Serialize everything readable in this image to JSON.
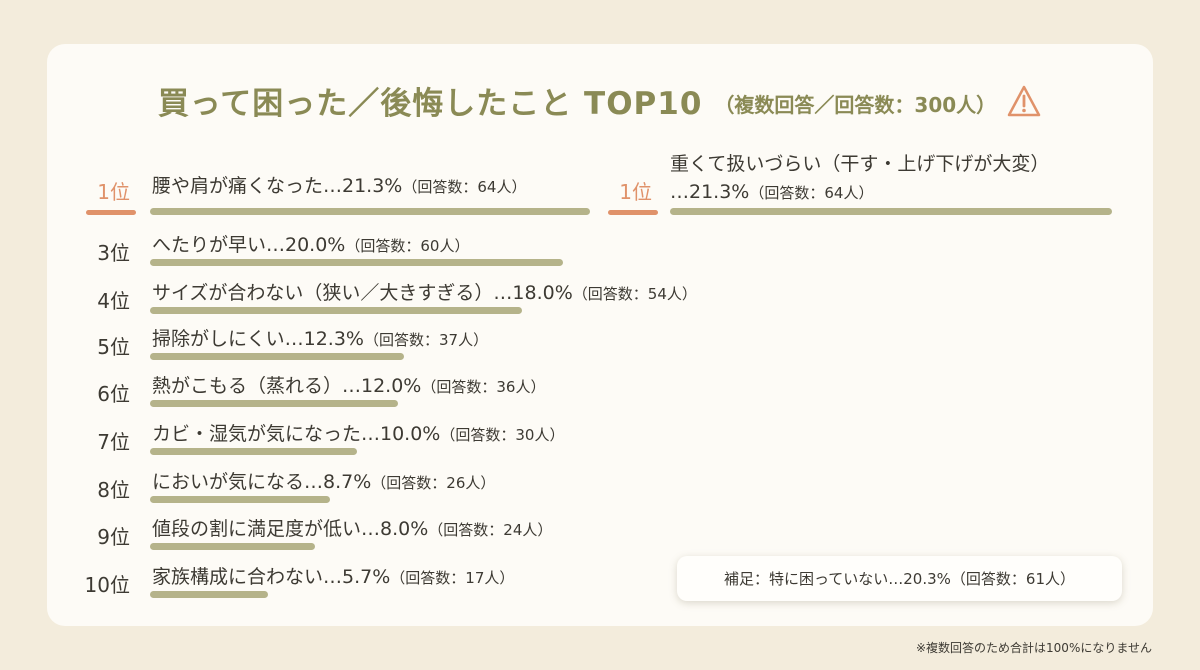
{
  "title": "買って困った／後悔したこと TOP10",
  "subtitle": "（複数回答／回答数：300人）",
  "icons": {
    "warning": "warning-triangle-icon"
  },
  "colors": {
    "accent": "#e0926a",
    "bar": "#b5b38a",
    "title": "#8a8a55"
  },
  "chart_data": {
    "type": "bar",
    "orientation": "horizontal",
    "items": [
      {
        "rank": "1位",
        "label": "腰や肩が痛くなった…21.3%",
        "count": "（回答数：64人）",
        "value": 21.3
      },
      {
        "rank": "1位",
        "label": "重くて扱いづらい（干す・上げ下げが大変）",
        "label2": "…21.3%",
        "count": "（回答数：64人）",
        "value": 21.3
      },
      {
        "rank": "3位",
        "label": "へたりが早い…20.0%",
        "count": "（回答数：60人）",
        "value": 20.0
      },
      {
        "rank": "4位",
        "label": "サイズが合わない（狭い／大きすぎる）…18.0%",
        "count": "（回答数：54人）",
        "value": 18.0
      },
      {
        "rank": "5位",
        "label": "掃除がしにくい…12.3%",
        "count": "（回答数：37人）",
        "value": 12.3
      },
      {
        "rank": "6位",
        "label": "熱がこもる（蒸れる）…12.0%",
        "count": "（回答数：36人）",
        "value": 12.0
      },
      {
        "rank": "7位",
        "label": "カビ・湿気が気になった…10.0%",
        "count": "（回答数：30人）",
        "value": 10.0
      },
      {
        "rank": "8位",
        "label": "においが気になる…8.7%",
        "count": "（回答数：26人）",
        "value": 8.7
      },
      {
        "rank": "9位",
        "label": "値段の割に満足度が低い…8.0%",
        "count": "（回答数：24人）",
        "value": 8.0
      },
      {
        "rank": "10位",
        "label": "家族構成に合わない…5.7%",
        "count": "（回答数：17人）",
        "value": 5.7
      }
    ]
  },
  "note": "補足：特に困っていない…20.3%（回答数：61人）",
  "footnote": "※複数回答のため合計は100%になりません"
}
